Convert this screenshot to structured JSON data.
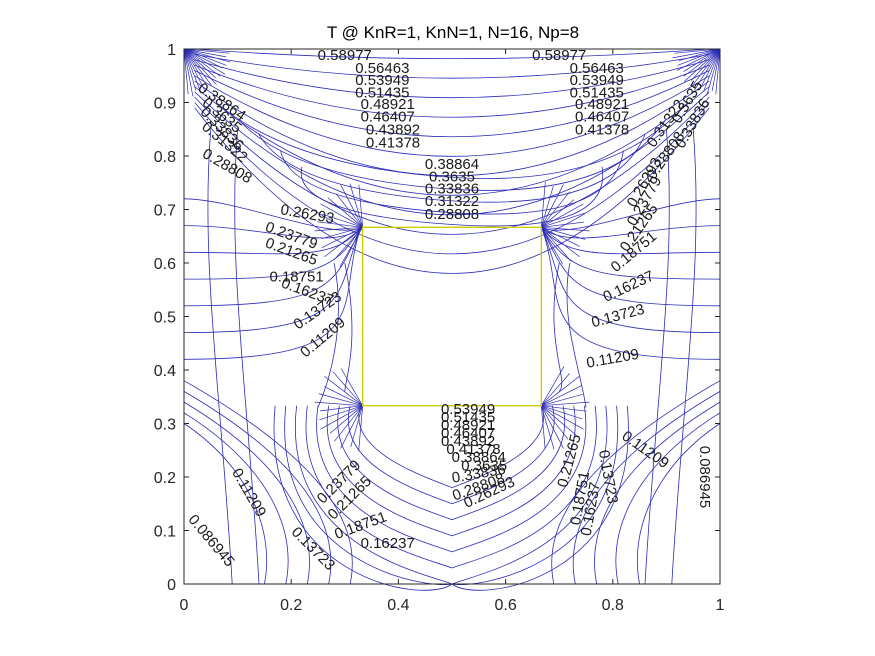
{
  "chart_data": {
    "type": "contour",
    "title": "T @ KnR=1, KnN=1, N=16, Np=8",
    "xlabel": "",
    "ylabel": "",
    "xlim": [
      0,
      1
    ],
    "ylim": [
      0,
      1
    ],
    "xticks": [
      0,
      0.2,
      0.4,
      0.6,
      0.8,
      1
    ],
    "yticks": [
      0,
      0.1,
      0.2,
      0.3,
      0.4,
      0.5,
      0.6,
      0.7,
      0.8,
      0.9,
      1
    ],
    "xtick_labels": [
      "0",
      "0.2",
      "0.4",
      "0.6",
      "0.8",
      "1"
    ],
    "ytick_labels": [
      "0",
      "0.1",
      "0.2",
      "0.3",
      "0.4",
      "0.5",
      "0.6",
      "0.7",
      "0.8",
      "0.9",
      "1"
    ],
    "grid": false,
    "line_color": "#2b2bb8",
    "obstacle_color": "#cccc00",
    "obstacle": {
      "x": [
        0.3333,
        0.6667
      ],
      "y": [
        0.3333,
        0.6667
      ]
    },
    "contour_levels": [
      0.086945,
      0.11209,
      0.13723,
      0.16237,
      0.18751,
      0.21265,
      0.23779,
      0.26293,
      0.28808,
      0.31322,
      0.33836,
      0.3635,
      0.38864,
      0.41378,
      0.43892,
      0.46407,
      0.48921,
      0.51435,
      0.53949,
      0.56463,
      0.58977
    ],
    "labels": [
      {
        "text": "0.58977",
        "x": 0.3,
        "y": 0.987,
        "rot": 0
      },
      {
        "text": "0.56463",
        "x": 0.37,
        "y": 0.963,
        "rot": 0
      },
      {
        "text": "0.53949",
        "x": 0.37,
        "y": 0.94,
        "rot": 0
      },
      {
        "text": "0.51435",
        "x": 0.37,
        "y": 0.917,
        "rot": 0
      },
      {
        "text": "0.48921",
        "x": 0.38,
        "y": 0.895,
        "rot": 0
      },
      {
        "text": "0.46407",
        "x": 0.38,
        "y": 0.872,
        "rot": 0
      },
      {
        "text": "0.43892",
        "x": 0.39,
        "y": 0.848,
        "rot": 0
      },
      {
        "text": "0.41378",
        "x": 0.39,
        "y": 0.823,
        "rot": 0
      },
      {
        "text": "0.58977",
        "x": 0.7,
        "y": 0.987,
        "rot": 0
      },
      {
        "text": "0.56463",
        "x": 0.77,
        "y": 0.963,
        "rot": 0
      },
      {
        "text": "0.53949",
        "x": 0.77,
        "y": 0.94,
        "rot": 0
      },
      {
        "text": "0.51435",
        "x": 0.77,
        "y": 0.917,
        "rot": 0
      },
      {
        "text": "0.48921",
        "x": 0.78,
        "y": 0.895,
        "rot": 0
      },
      {
        "text": "0.46407",
        "x": 0.78,
        "y": 0.872,
        "rot": 0
      },
      {
        "text": "0.41378",
        "x": 0.78,
        "y": 0.848,
        "rot": 0
      },
      {
        "text": "0.38864",
        "x": 0.07,
        "y": 0.9,
        "rot": 35
      },
      {
        "text": "0.3635",
        "x": 0.07,
        "y": 0.875,
        "rot": 40
      },
      {
        "text": "0.33836",
        "x": 0.07,
        "y": 0.85,
        "rot": 45
      },
      {
        "text": "0.31322",
        "x": 0.075,
        "y": 0.825,
        "rot": 40
      },
      {
        "text": "0.28808",
        "x": 0.08,
        "y": 0.78,
        "rot": 30
      },
      {
        "text": "0.3635",
        "x": 0.94,
        "y": 0.9,
        "rot": -60
      },
      {
        "text": "0.33836",
        "x": 0.95,
        "y": 0.86,
        "rot": -60
      },
      {
        "text": "0.31322",
        "x": 0.9,
        "y": 0.86,
        "rot": -55
      },
      {
        "text": "0.28808",
        "x": 0.9,
        "y": 0.8,
        "rot": -55
      },
      {
        "text": "0.38864",
        "x": 0.5,
        "y": 0.783,
        "rot": 0
      },
      {
        "text": "0.3635",
        "x": 0.5,
        "y": 0.76,
        "rot": 0
      },
      {
        "text": "0.33836",
        "x": 0.5,
        "y": 0.737,
        "rot": 0
      },
      {
        "text": "0.31322",
        "x": 0.5,
        "y": 0.714,
        "rot": 0
      },
      {
        "text": "0.28808",
        "x": 0.5,
        "y": 0.69,
        "rot": 0
      },
      {
        "text": "0.26293",
        "x": 0.23,
        "y": 0.69,
        "rot": 10
      },
      {
        "text": "0.23779",
        "x": 0.2,
        "y": 0.65,
        "rot": 20
      },
      {
        "text": "0.21265",
        "x": 0.2,
        "y": 0.62,
        "rot": 20
      },
      {
        "text": "0.18751",
        "x": 0.21,
        "y": 0.573,
        "rot": 0
      },
      {
        "text": "0.16237",
        "x": 0.23,
        "y": 0.545,
        "rot": 20
      },
      {
        "text": "0.13723",
        "x": 0.25,
        "y": 0.51,
        "rot": -35
      },
      {
        "text": "0.11209",
        "x": 0.26,
        "y": 0.46,
        "rot": -40
      },
      {
        "text": "0.26293",
        "x": 0.86,
        "y": 0.75,
        "rot": -60
      },
      {
        "text": "0.23779",
        "x": 0.86,
        "y": 0.715,
        "rot": -60
      },
      {
        "text": "0.21265",
        "x": 0.85,
        "y": 0.665,
        "rot": -55
      },
      {
        "text": "0.18751",
        "x": 0.84,
        "y": 0.62,
        "rot": -40
      },
      {
        "text": "0.16237",
        "x": 0.83,
        "y": 0.555,
        "rot": -25
      },
      {
        "text": "0.13723",
        "x": 0.81,
        "y": 0.5,
        "rot": -15
      },
      {
        "text": "0.11209",
        "x": 0.8,
        "y": 0.42,
        "rot": -10
      },
      {
        "text": "0.53949",
        "x": 0.53,
        "y": 0.325,
        "rot": 0
      },
      {
        "text": "0.51435",
        "x": 0.53,
        "y": 0.31,
        "rot": 0
      },
      {
        "text": "0.48921",
        "x": 0.53,
        "y": 0.295,
        "rot": 0
      },
      {
        "text": "0.46407",
        "x": 0.53,
        "y": 0.28,
        "rot": 0
      },
      {
        "text": "0.43892",
        "x": 0.53,
        "y": 0.265,
        "rot": 0
      },
      {
        "text": "0.41378",
        "x": 0.54,
        "y": 0.25,
        "rot": 0
      },
      {
        "text": "0.38864",
        "x": 0.55,
        "y": 0.235,
        "rot": 0
      },
      {
        "text": "0.3635",
        "x": 0.56,
        "y": 0.22,
        "rot": 0
      },
      {
        "text": "0.33836",
        "x": 0.55,
        "y": 0.205,
        "rot": -10
      },
      {
        "text": "0.28808",
        "x": 0.55,
        "y": 0.18,
        "rot": -20
      },
      {
        "text": "0.26293",
        "x": 0.57,
        "y": 0.17,
        "rot": -25
      },
      {
        "text": "0.23779",
        "x": 0.29,
        "y": 0.19,
        "rot": -45
      },
      {
        "text": "0.21265",
        "x": 0.31,
        "y": 0.16,
        "rot": -45
      },
      {
        "text": "0.18751",
        "x": 0.33,
        "y": 0.108,
        "rot": -20
      },
      {
        "text": "0.16237",
        "x": 0.38,
        "y": 0.075,
        "rot": 0
      },
      {
        "text": "0.11209",
        "x": 0.12,
        "y": 0.17,
        "rot": 60
      },
      {
        "text": "0.13723",
        "x": 0.24,
        "y": 0.065,
        "rot": 45
      },
      {
        "text": "0.086945",
        "x": 0.05,
        "y": 0.08,
        "rot": 50
      },
      {
        "text": "0.21265",
        "x": 0.72,
        "y": 0.23,
        "rot": -75
      },
      {
        "text": "0.18751",
        "x": 0.74,
        "y": 0.16,
        "rot": -80
      },
      {
        "text": "0.16237",
        "x": 0.76,
        "y": 0.14,
        "rot": -80
      },
      {
        "text": "0.13723",
        "x": 0.79,
        "y": 0.2,
        "rot": 80
      },
      {
        "text": "0.11209",
        "x": 0.86,
        "y": 0.25,
        "rot": 35
      },
      {
        "text": "0.086945",
        "x": 0.97,
        "y": 0.2,
        "rot": 90
      }
    ]
  }
}
